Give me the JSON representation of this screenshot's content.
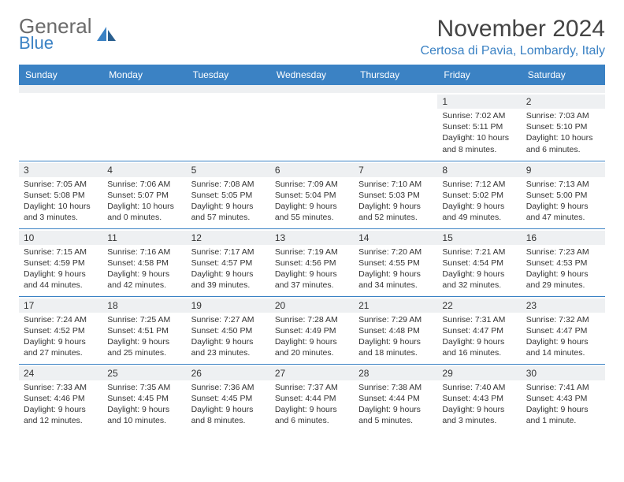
{
  "brand": {
    "name1": "General",
    "name2": "Blue"
  },
  "title": "November 2024",
  "location": "Certosa di Pavia, Lombardy, Italy",
  "colors": {
    "header_bg": "#3b82c4",
    "header_fg": "#ffffff",
    "daynum_bg": "#eef0f2",
    "border": "#3b82c4",
    "text": "#333333"
  },
  "dayNames": [
    "Sunday",
    "Monday",
    "Tuesday",
    "Wednesday",
    "Thursday",
    "Friday",
    "Saturday"
  ],
  "weeks": [
    [
      null,
      null,
      null,
      null,
      null,
      {
        "n": "1",
        "sr": "7:02 AM",
        "ss": "5:11 PM",
        "dl": "10 hours and 8 minutes."
      },
      {
        "n": "2",
        "sr": "7:03 AM",
        "ss": "5:10 PM",
        "dl": "10 hours and 6 minutes."
      }
    ],
    [
      {
        "n": "3",
        "sr": "7:05 AM",
        "ss": "5:08 PM",
        "dl": "10 hours and 3 minutes."
      },
      {
        "n": "4",
        "sr": "7:06 AM",
        "ss": "5:07 PM",
        "dl": "10 hours and 0 minutes."
      },
      {
        "n": "5",
        "sr": "7:08 AM",
        "ss": "5:05 PM",
        "dl": "9 hours and 57 minutes."
      },
      {
        "n": "6",
        "sr": "7:09 AM",
        "ss": "5:04 PM",
        "dl": "9 hours and 55 minutes."
      },
      {
        "n": "7",
        "sr": "7:10 AM",
        "ss": "5:03 PM",
        "dl": "9 hours and 52 minutes."
      },
      {
        "n": "8",
        "sr": "7:12 AM",
        "ss": "5:02 PM",
        "dl": "9 hours and 49 minutes."
      },
      {
        "n": "9",
        "sr": "7:13 AM",
        "ss": "5:00 PM",
        "dl": "9 hours and 47 minutes."
      }
    ],
    [
      {
        "n": "10",
        "sr": "7:15 AM",
        "ss": "4:59 PM",
        "dl": "9 hours and 44 minutes."
      },
      {
        "n": "11",
        "sr": "7:16 AM",
        "ss": "4:58 PM",
        "dl": "9 hours and 42 minutes."
      },
      {
        "n": "12",
        "sr": "7:17 AM",
        "ss": "4:57 PM",
        "dl": "9 hours and 39 minutes."
      },
      {
        "n": "13",
        "sr": "7:19 AM",
        "ss": "4:56 PM",
        "dl": "9 hours and 37 minutes."
      },
      {
        "n": "14",
        "sr": "7:20 AM",
        "ss": "4:55 PM",
        "dl": "9 hours and 34 minutes."
      },
      {
        "n": "15",
        "sr": "7:21 AM",
        "ss": "4:54 PM",
        "dl": "9 hours and 32 minutes."
      },
      {
        "n": "16",
        "sr": "7:23 AM",
        "ss": "4:53 PM",
        "dl": "9 hours and 29 minutes."
      }
    ],
    [
      {
        "n": "17",
        "sr": "7:24 AM",
        "ss": "4:52 PM",
        "dl": "9 hours and 27 minutes."
      },
      {
        "n": "18",
        "sr": "7:25 AM",
        "ss": "4:51 PM",
        "dl": "9 hours and 25 minutes."
      },
      {
        "n": "19",
        "sr": "7:27 AM",
        "ss": "4:50 PM",
        "dl": "9 hours and 23 minutes."
      },
      {
        "n": "20",
        "sr": "7:28 AM",
        "ss": "4:49 PM",
        "dl": "9 hours and 20 minutes."
      },
      {
        "n": "21",
        "sr": "7:29 AM",
        "ss": "4:48 PM",
        "dl": "9 hours and 18 minutes."
      },
      {
        "n": "22",
        "sr": "7:31 AM",
        "ss": "4:47 PM",
        "dl": "9 hours and 16 minutes."
      },
      {
        "n": "23",
        "sr": "7:32 AM",
        "ss": "4:47 PM",
        "dl": "9 hours and 14 minutes."
      }
    ],
    [
      {
        "n": "24",
        "sr": "7:33 AM",
        "ss": "4:46 PM",
        "dl": "9 hours and 12 minutes."
      },
      {
        "n": "25",
        "sr": "7:35 AM",
        "ss": "4:45 PM",
        "dl": "9 hours and 10 minutes."
      },
      {
        "n": "26",
        "sr": "7:36 AM",
        "ss": "4:45 PM",
        "dl": "9 hours and 8 minutes."
      },
      {
        "n": "27",
        "sr": "7:37 AM",
        "ss": "4:44 PM",
        "dl": "9 hours and 6 minutes."
      },
      {
        "n": "28",
        "sr": "7:38 AM",
        "ss": "4:44 PM",
        "dl": "9 hours and 5 minutes."
      },
      {
        "n": "29",
        "sr": "7:40 AM",
        "ss": "4:43 PM",
        "dl": "9 hours and 3 minutes."
      },
      {
        "n": "30",
        "sr": "7:41 AM",
        "ss": "4:43 PM",
        "dl": "9 hours and 1 minute."
      }
    ]
  ],
  "labels": {
    "sunrise": "Sunrise: ",
    "sunset": "Sunset: ",
    "daylight": "Daylight: "
  }
}
